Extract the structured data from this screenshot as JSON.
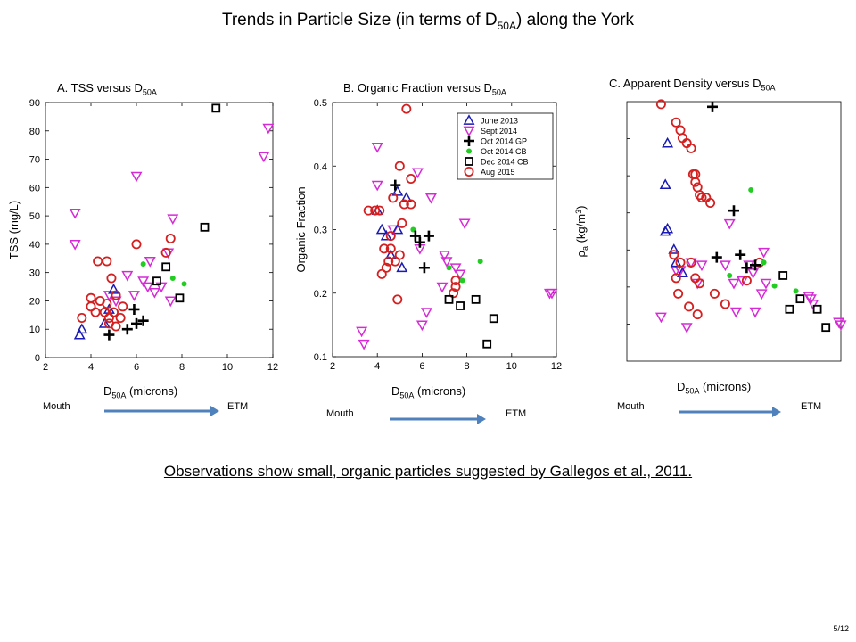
{
  "slide": {
    "title_main": "Trends in Particle Size (in terms of D",
    "title_sub": "50A",
    "title_end": ") along the York",
    "observation": "Observations show small, organic particles  suggested by Gallegos et al., 2011.",
    "page_number": "5/12"
  },
  "direction": {
    "start": "Mouth",
    "end": "ETM",
    "arrow_color": "#4f81bd"
  },
  "series_styles": [
    {
      "name": "June 2013",
      "marker": "triangle-up",
      "color": "#1a1ab4"
    },
    {
      "name": "Sept 2014",
      "marker": "triangle-down",
      "color": "#d62ad6"
    },
    {
      "name": "Oct 2014 GP",
      "marker": "plus",
      "color": "#000000"
    },
    {
      "name": "Oct 2014 CB",
      "marker": "dot",
      "color": "#22cc22"
    },
    {
      "name": "Dec 2014 CB",
      "marker": "square",
      "color": "#000000"
    },
    {
      "name": "Aug 2015",
      "marker": "circle",
      "color": "#d42020"
    }
  ],
  "chart_data": [
    {
      "type": "scatter",
      "title": "A. TSS versus D",
      "title_sub": "50A",
      "xlabel": "D",
      "xlabel_sub": "50A",
      "xlabel_end": " (microns)",
      "ylabel": "TSS (mg/L)",
      "xlim": [
        2,
        12
      ],
      "ylim": [
        0,
        90
      ],
      "xticks": [
        "2",
        "4",
        "6",
        "8",
        "10",
        "12"
      ],
      "yticks": [
        "0",
        "10",
        "20",
        "30",
        "40",
        "50",
        "60",
        "70",
        "80",
        "90"
      ],
      "series": [
        {
          "name": "June 2013",
          "points": [
            [
              3.5,
              8
            ],
            [
              3.6,
              10
            ],
            [
              4.6,
              12
            ],
            [
              4.8,
              17
            ],
            [
              5.0,
              24
            ]
          ]
        },
        {
          "name": "Sept 2014",
          "points": [
            [
              3.3,
              51
            ],
            [
              3.3,
              40
            ],
            [
              4.8,
              22
            ],
            [
              5.1,
              20
            ],
            [
              5.6,
              29
            ],
            [
              5.9,
              22
            ],
            [
              6.0,
              64
            ],
            [
              6.3,
              27
            ],
            [
              6.5,
              25
            ],
            [
              6.6,
              34
            ],
            [
              6.8,
              23
            ],
            [
              7.1,
              25
            ],
            [
              7.4,
              37
            ],
            [
              7.5,
              20
            ],
            [
              7.6,
              49
            ],
            [
              11.6,
              71
            ],
            [
              11.8,
              81
            ]
          ]
        },
        {
          "name": "Oct 2014 GP",
          "points": [
            [
              4.8,
              8
            ],
            [
              5.6,
              10
            ],
            [
              5.9,
              17
            ],
            [
              6.0,
              12
            ],
            [
              6.3,
              13
            ]
          ]
        },
        {
          "name": "Oct 2014 CB",
          "points": [
            [
              6.3,
              33
            ],
            [
              7.6,
              28
            ],
            [
              8.1,
              26
            ]
          ]
        },
        {
          "name": "Dec 2014 CB",
          "points": [
            [
              6.9,
              27
            ],
            [
              7.3,
              32
            ],
            [
              7.9,
              21
            ],
            [
              9.0,
              46
            ],
            [
              9.5,
              88
            ]
          ]
        },
        {
          "name": "Aug 2015",
          "points": [
            [
              3.6,
              14
            ],
            [
              4.0,
              18
            ],
            [
              4.0,
              21
            ],
            [
              4.2,
              16
            ],
            [
              4.3,
              34
            ],
            [
              4.4,
              20
            ],
            [
              4.6,
              16
            ],
            [
              4.7,
              34
            ],
            [
              4.7,
              19
            ],
            [
              4.8,
              14
            ],
            [
              4.8,
              12
            ],
            [
              4.9,
              28
            ],
            [
              5.0,
              16
            ],
            [
              5.1,
              22
            ],
            [
              5.1,
              11
            ],
            [
              5.3,
              14
            ],
            [
              5.4,
              18
            ],
            [
              6.0,
              40
            ],
            [
              7.3,
              37
            ],
            [
              7.5,
              42
            ]
          ]
        }
      ]
    },
    {
      "type": "scatter",
      "title": "B. Organic Fraction versus D",
      "title_sub": "50A",
      "xlabel": "D",
      "xlabel_sub": "50A",
      "xlabel_end": " (microns)",
      "ylabel": "Organic Fraction",
      "xlim": [
        2,
        12
      ],
      "ylim": [
        0.1,
        0.5
      ],
      "xticks": [
        "2",
        "4",
        "6",
        "8",
        "10",
        "12"
      ],
      "yticks": [
        "0.1",
        "0.2",
        "0.3",
        "0.4",
        "0.5"
      ],
      "legend_position": "top-right",
      "series": [
        {
          "name": "June 2013",
          "points": [
            [
              4.0,
              0.33
            ],
            [
              4.2,
              0.3
            ],
            [
              4.4,
              0.29
            ],
            [
              4.6,
              0.26
            ],
            [
              4.9,
              0.3
            ],
            [
              5.1,
              0.24
            ],
            [
              5.3,
              0.35
            ],
            [
              4.9,
              0.36
            ]
          ]
        },
        {
          "name": "Sept 2014",
          "points": [
            [
              3.3,
              0.14
            ],
            [
              3.4,
              0.12
            ],
            [
              4.0,
              0.43
            ],
            [
              4.0,
              0.37
            ],
            [
              4.7,
              0.3
            ],
            [
              5.8,
              0.39
            ],
            [
              5.9,
              0.27
            ],
            [
              6.0,
              0.15
            ],
            [
              6.2,
              0.17
            ],
            [
              6.4,
              0.35
            ],
            [
              6.9,
              0.21
            ],
            [
              7.0,
              0.26
            ],
            [
              7.1,
              0.25
            ],
            [
              7.5,
              0.24
            ],
            [
              7.7,
              0.23
            ],
            [
              7.9,
              0.31
            ],
            [
              11.7,
              0.2
            ],
            [
              11.8,
              0.2
            ]
          ]
        },
        {
          "name": "Oct 2014 GP",
          "points": [
            [
              4.8,
              0.37
            ],
            [
              5.7,
              0.29
            ],
            [
              5.9,
              0.28
            ],
            [
              6.3,
              0.29
            ],
            [
              6.1,
              0.24
            ]
          ]
        },
        {
          "name": "Oct 2014 CB",
          "points": [
            [
              5.6,
              0.3
            ],
            [
              7.2,
              0.24
            ],
            [
              7.8,
              0.22
            ],
            [
              8.6,
              0.25
            ]
          ]
        },
        {
          "name": "Dec 2014 CB",
          "points": [
            [
              7.2,
              0.19
            ],
            [
              7.7,
              0.18
            ],
            [
              8.4,
              0.19
            ],
            [
              8.9,
              0.12
            ],
            [
              9.2,
              0.16
            ]
          ]
        },
        {
          "name": "Aug 2015",
          "points": [
            [
              3.6,
              0.33
            ],
            [
              3.9,
              0.33
            ],
            [
              4.1,
              0.33
            ],
            [
              4.2,
              0.23
            ],
            [
              4.3,
              0.27
            ],
            [
              4.4,
              0.24
            ],
            [
              4.5,
              0.25
            ],
            [
              4.6,
              0.27
            ],
            [
              4.6,
              0.29
            ],
            [
              4.7,
              0.35
            ],
            [
              4.8,
              0.25
            ],
            [
              4.9,
              0.19
            ],
            [
              5.0,
              0.4
            ],
            [
              5.0,
              0.26
            ],
            [
              5.1,
              0.31
            ],
            [
              5.2,
              0.34
            ],
            [
              5.3,
              0.49
            ],
            [
              5.5,
              0.38
            ],
            [
              5.5,
              0.34
            ],
            [
              7.4,
              0.2
            ],
            [
              7.5,
              0.22
            ],
            [
              7.5,
              0.21
            ]
          ]
        }
      ]
    },
    {
      "type": "scatter",
      "title": "C. Apparent Density versus D",
      "title_sub": "50A",
      "xlabel": "D",
      "xlabel_sub": "50A",
      "xlabel_end": " (microns)",
      "ylabel": "ρ",
      "ylabel_sub": "a",
      "ylabel_end": " (kg/m",
      "ylabel_sup": "3",
      "ylabel_close": ")",
      "xlim": [
        2,
        12
      ],
      "ylim": [
        0,
        1
      ],
      "xticks": [],
      "yticks": [],
      "series": [
        {
          "name": "June 2013",
          "points": [
            [
              3.9,
              0.84
            ],
            [
              3.8,
              0.68
            ],
            [
              3.8,
              0.5
            ],
            [
              3.9,
              0.51
            ],
            [
              4.2,
              0.43
            ],
            [
              4.3,
              0.38
            ],
            [
              4.6,
              0.34
            ]
          ]
        },
        {
          "name": "Sept 2014",
          "points": [
            [
              3.6,
              0.17
            ],
            [
              4.3,
              0.35
            ],
            [
              4.5,
              0.35
            ],
            [
              4.8,
              0.13
            ],
            [
              5.0,
              0.38
            ],
            [
              5.3,
              0.3
            ],
            [
              5.5,
              0.37
            ],
            [
              6.6,
              0.37
            ],
            [
              6.8,
              0.53
            ],
            [
              7.0,
              0.3
            ],
            [
              7.1,
              0.19
            ],
            [
              7.4,
              0.31
            ],
            [
              7.7,
              0.37
            ],
            [
              7.9,
              0.34
            ],
            [
              8.0,
              0.19
            ],
            [
              8.3,
              0.26
            ],
            [
              8.4,
              0.42
            ],
            [
              8.5,
              0.3
            ],
            [
              10.5,
              0.25
            ],
            [
              10.6,
              0.24
            ],
            [
              10.7,
              0.22
            ],
            [
              11.9,
              0.15
            ],
            [
              12.0,
              0.14
            ]
          ]
        },
        {
          "name": "Oct 2014 GP",
          "points": [
            [
              6.0,
              0.98
            ],
            [
              6.2,
              0.4
            ],
            [
              7.0,
              0.58
            ],
            [
              7.3,
              0.41
            ],
            [
              7.6,
              0.36
            ],
            [
              8.0,
              0.37
            ]
          ]
        },
        {
          "name": "Oct 2014 CB",
          "points": [
            [
              6.8,
              0.33
            ],
            [
              7.8,
              0.66
            ],
            [
              8.4,
              0.38
            ],
            [
              8.9,
              0.29
            ],
            [
              9.9,
              0.27
            ]
          ]
        },
        {
          "name": "Dec 2014 CB",
          "points": [
            [
              9.3,
              0.33
            ],
            [
              9.6,
              0.2
            ],
            [
              10.1,
              0.24
            ],
            [
              10.9,
              0.2
            ],
            [
              11.3,
              0.13
            ]
          ]
        },
        {
          "name": "Aug 2015",
          "points": [
            [
              3.6,
              0.99
            ],
            [
              4.3,
              0.92
            ],
            [
              4.5,
              0.89
            ],
            [
              4.6,
              0.86
            ],
            [
              4.8,
              0.84
            ],
            [
              5.0,
              0.82
            ],
            [
              5.1,
              0.72
            ],
            [
              5.2,
              0.72
            ],
            [
              5.2,
              0.69
            ],
            [
              5.3,
              0.67
            ],
            [
              5.4,
              0.64
            ],
            [
              5.5,
              0.63
            ],
            [
              5.7,
              0.63
            ],
            [
              5.9,
              0.61
            ],
            [
              4.2,
              0.41
            ],
            [
              4.3,
              0.32
            ],
            [
              4.4,
              0.26
            ],
            [
              4.5,
              0.38
            ],
            [
              4.9,
              0.21
            ],
            [
              5.0,
              0.38
            ],
            [
              5.2,
              0.32
            ],
            [
              5.3,
              0.18
            ],
            [
              5.4,
              0.3
            ],
            [
              6.1,
              0.26
            ],
            [
              6.6,
              0.22
            ],
            [
              7.6,
              0.31
            ],
            [
              8.2,
              0.38
            ]
          ]
        }
      ]
    }
  ]
}
